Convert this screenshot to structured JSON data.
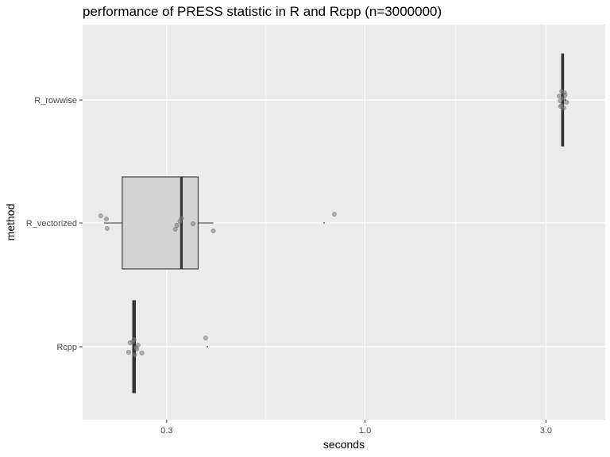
{
  "chart_data": {
    "type": "boxplot",
    "title": "performance of PRESS statistic in R and Rcpp (n=3000000)",
    "xlabel": "seconds",
    "ylabel": "method",
    "x_scale": "log10",
    "xlim": [
      0.18,
      4.3
    ],
    "x_ticks": [
      {
        "value": 0.3,
        "label": "0.3"
      },
      {
        "value": 1.0,
        "label": "1.0"
      },
      {
        "value": 3.0,
        "label": "3.0"
      }
    ],
    "categories": [
      "R_rowwise",
      "R_vectorized",
      "Rcpp"
    ],
    "boxes": [
      {
        "name": "R_rowwise",
        "min": 3.3,
        "q1": 3.3,
        "median": 3.32,
        "q3": 3.34,
        "max": 3.36,
        "mean": 3.38
      },
      {
        "name": "R_vectorized",
        "min": 0.205,
        "q1": 0.229,
        "median": 0.328,
        "q3": 0.363,
        "max": 0.398,
        "mean": 0.78
      },
      {
        "name": "Rcpp",
        "min": 0.244,
        "q1": 0.244,
        "median": 0.246,
        "q3": 0.248,
        "max": 0.25,
        "mean": 0.384
      }
    ],
    "points": [
      {
        "category": "R_rowwise",
        "values": [
          3.25,
          3.3,
          3.36,
          3.4,
          3.33,
          3.28,
          3.37,
          3.27,
          3.34,
          3.3
        ]
      },
      {
        "category": "R_vectorized",
        "values": [
          0.208,
          0.209,
          0.201,
          0.319,
          0.325,
          0.316,
          0.328,
          0.352,
          0.398,
          0.83
        ]
      },
      {
        "category": "Rcpp",
        "values": [
          0.24,
          0.238,
          0.246,
          0.25,
          0.252,
          0.258,
          0.244,
          0.249,
          0.247,
          0.38
        ]
      }
    ],
    "grid": true,
    "colors": {
      "panel": "#ebebeb",
      "grid": "#ffffff",
      "box_fill": "#d3d3d3",
      "box_line": "#333333",
      "point": "#808080"
    }
  }
}
